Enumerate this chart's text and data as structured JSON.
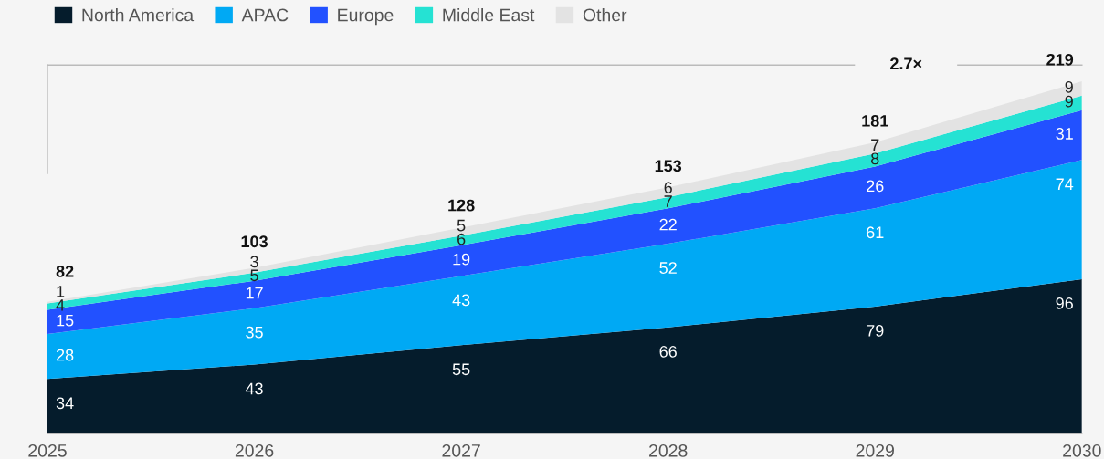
{
  "chart_data": {
    "type": "area",
    "stacked": true,
    "data_labels": true,
    "legend": "top left",
    "grid": false,
    "x": [
      2025,
      2026,
      2027,
      2028,
      2029,
      2030
    ],
    "xlim": [
      2025,
      2030
    ],
    "xticks": [
      2025,
      2026,
      2027,
      2028,
      2029,
      2030
    ],
    "series": [
      {
        "name": "North America",
        "color": "#051c2c",
        "values": [
          34,
          43,
          55,
          66,
          79,
          96
        ]
      },
      {
        "name": "APAC",
        "color": "#00a9f4",
        "values": [
          28,
          35,
          43,
          52,
          61,
          74
        ]
      },
      {
        "name": "Europe",
        "color": "#2251ff",
        "values": [
          15,
          17,
          19,
          22,
          26,
          31
        ]
      },
      {
        "name": "Middle East",
        "color": "#25e2d3",
        "values": [
          4,
          5,
          6,
          7,
          8,
          9
        ]
      },
      {
        "name": "Other",
        "color": "#e3e3e3",
        "values": [
          1,
          3,
          5,
          6,
          7,
          9
        ]
      }
    ],
    "totals": [
      "82",
      "103",
      "128",
      "153",
      "181",
      "219"
    ],
    "annotations": [
      "2.7×"
    ]
  }
}
